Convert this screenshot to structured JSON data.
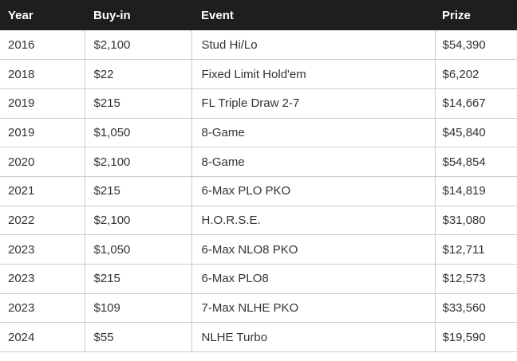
{
  "chart_data": {
    "type": "table",
    "columns": [
      "Year",
      "Buy-in",
      "Event",
      "Prize"
    ],
    "rows": [
      [
        "2016",
        "$2,100",
        "Stud Hi/Lo",
        "$54,390"
      ],
      [
        "2018",
        "$22",
        "Fixed Limit Hold'em",
        "$6,202"
      ],
      [
        "2019",
        "$215",
        "FL Triple Draw 2-7",
        "$14,667"
      ],
      [
        "2019",
        "$1,050",
        "8-Game",
        "$45,840"
      ],
      [
        "2020",
        "$2,100",
        "8-Game",
        "$54,854"
      ],
      [
        "2021",
        "$215",
        "6-Max PLO PKO",
        "$14,819"
      ],
      [
        "2022",
        "$2,100",
        "H.O.R.S.E.",
        "$31,080"
      ],
      [
        "2023",
        "$1,050",
        "6-Max NLO8 PKO",
        "$12,711"
      ],
      [
        "2023",
        "$215",
        "6-Max PLO8",
        "$12,573"
      ],
      [
        "2023",
        "$109",
        "7-Max NLHE PKO",
        "$33,560"
      ],
      [
        "2024",
        "$55",
        "NLHE Turbo",
        "$19,590"
      ]
    ]
  },
  "theme": {
    "header_bg": "#1e1e1e",
    "header_text": "#ffffff",
    "body_text": "#333333",
    "border": "#cccccc",
    "row_bg": "#ffffff"
  }
}
